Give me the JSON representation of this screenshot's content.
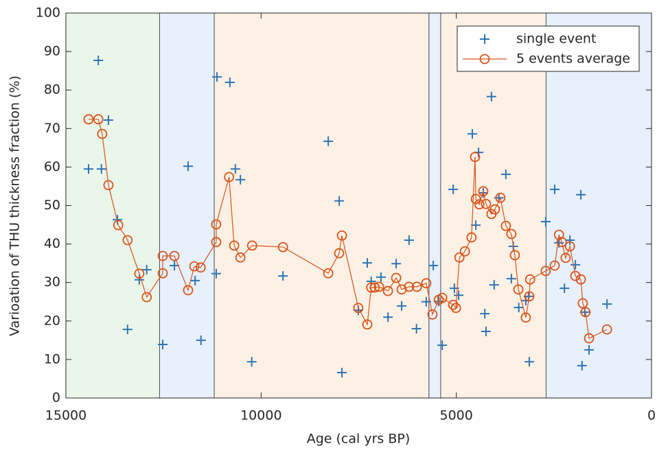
{
  "chart_data": {
    "type": "scatter",
    "xlabel": "Age (cal yrs BP)",
    "ylabel": "Varioation of THU thickness fraction (%)",
    "xlim": [
      15000,
      0
    ],
    "ylim": [
      0,
      100
    ],
    "xticks": [
      15000,
      10000,
      5000,
      0
    ],
    "yticks": [
      0,
      10,
      20,
      30,
      40,
      50,
      60,
      70,
      80,
      90,
      100
    ],
    "legend": "northeast",
    "shaded_regions": [
      {
        "xlim": [
          15000,
          12600
        ],
        "color": "#eaf6ea"
      },
      {
        "xlim": [
          12600,
          11200
        ],
        "color": "#e7f0fb"
      },
      {
        "xlim": [
          11200,
          5700
        ],
        "color": "#fdf0e4"
      },
      {
        "xlim": [
          5700,
          5400
        ],
        "color": "#e7f0fb"
      },
      {
        "xlim": [
          5400,
          2700
        ],
        "color": "#fdf0e4"
      },
      {
        "xlim": [
          2700,
          0
        ],
        "color": "#e7f0fb"
      }
    ],
    "series": [
      {
        "name": "single event",
        "marker": "plus",
        "color": "#2e74b5",
        "line": false,
        "x": [
          14420,
          14170,
          14090,
          13910,
          13680,
          13420,
          13120,
          12930,
          12520,
          12220,
          11870,
          11690,
          11540,
          11150,
          11130,
          10800,
          10660,
          10530,
          10240,
          9440,
          8280,
          8000,
          7930,
          7510,
          7280,
          7180,
          6930,
          6750,
          6540,
          6400,
          6210,
          6020,
          5770,
          5590,
          5450,
          5360,
          5080,
          5050,
          4940,
          4270,
          4590,
          4500,
          4430,
          4310,
          4240,
          4100,
          4030,
          3910,
          3730,
          3590,
          3540,
          3400,
          3220,
          3130,
          3150,
          2710,
          2480,
          2370,
          2230,
          2090,
          1950,
          1810,
          1780,
          1710,
          1600,
          1140
        ],
        "values": [
          59.5,
          87.7,
          59.5,
          72.2,
          46.3,
          17.8,
          30.7,
          33.3,
          13.9,
          34.4,
          60.2,
          30.5,
          15.0,
          32.3,
          83.4,
          82.0,
          59.5,
          56.7,
          9.4,
          31.7,
          66.7,
          51.2,
          6.6,
          22.8,
          35.1,
          30.3,
          31.4,
          21.0,
          34.9,
          23.9,
          41.0,
          18.0,
          25.0,
          34.4,
          25.1,
          13.7,
          54.2,
          28.5,
          26.7,
          21.9,
          68.6,
          44.9,
          63.8,
          53.3,
          17.3,
          78.3,
          29.4,
          52.0,
          58.1,
          31.0,
          39.4,
          23.5,
          25.3,
          9.4,
          26.4,
          45.8,
          54.2,
          40.3,
          28.5,
          41.0,
          34.6,
          52.8,
          8.4,
          22.3,
          12.5,
          24.4
        ]
      },
      {
        "name": "5 events average",
        "marker": "circle",
        "color": "#d95319",
        "line": true,
        "x": [
          14420,
          14170,
          14070,
          13910,
          13660,
          13420,
          13120,
          12930,
          12520,
          12520,
          12220,
          11870,
          11710,
          11550,
          11150,
          11150,
          10820,
          10690,
          10530,
          10230,
          9440,
          8280,
          8000,
          7930,
          7510,
          7280,
          7180,
          7090,
          6980,
          6750,
          6540,
          6400,
          6210,
          6010,
          5770,
          5610,
          5450,
          5360,
          5080,
          5010,
          4920,
          4780,
          4610,
          4520,
          4500,
          4410,
          4310,
          4240,
          4100,
          4010,
          3870,
          3730,
          3590,
          3500,
          3410,
          3220,
          3130,
          3110,
          2710,
          2480,
          2370,
          2300,
          2200,
          2090,
          1950,
          1810,
          1760,
          1690,
          1600,
          1140
        ],
        "values": [
          72.4,
          72.4,
          68.6,
          55.3,
          44.9,
          41.0,
          32.3,
          26.2,
          32.4,
          36.9,
          36.9,
          28.0,
          34.2,
          33.9,
          40.5,
          45.1,
          57.4,
          39.6,
          36.5,
          39.6,
          39.2,
          32.4,
          37.6,
          42.2,
          23.4,
          19.1,
          28.7,
          28.7,
          28.9,
          27.8,
          31.2,
          28.2,
          28.9,
          28.9,
          29.8,
          21.7,
          25.5,
          26.0,
          24.2,
          23.4,
          36.5,
          38.1,
          41.7,
          62.6,
          51.7,
          50.3,
          53.7,
          50.4,
          47.8,
          49.0,
          52.0,
          44.7,
          42.6,
          37.1,
          28.2,
          20.9,
          26.4,
          30.8,
          33.0,
          34.4,
          42.4,
          40.5,
          36.4,
          39.4,
          31.7,
          30.8,
          24.6,
          22.3,
          15.5,
          17.8
        ]
      }
    ]
  }
}
